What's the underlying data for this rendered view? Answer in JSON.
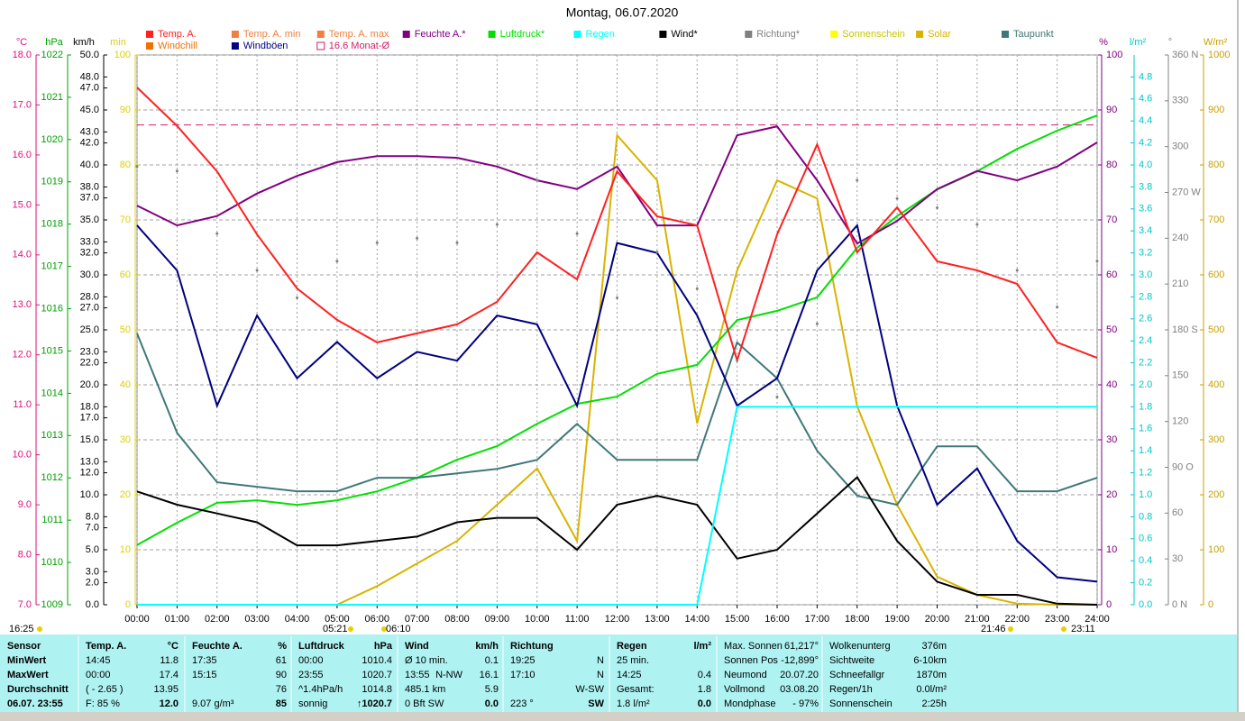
{
  "chart_data": {
    "type": "line",
    "title": "Montag, 06.07.2020",
    "x": [
      "00:00",
      "01:00",
      "02:00",
      "03:00",
      "04:00",
      "05:00",
      "06:00",
      "07:00",
      "08:00",
      "09:00",
      "10:00",
      "11:00",
      "12:00",
      "13:00",
      "14:00",
      "15:00",
      "16:00",
      "17:00",
      "18:00",
      "19:00",
      "20:00",
      "21:00",
      "22:00",
      "23:00",
      "24:00"
    ],
    "grid": true,
    "y_axes": [
      {
        "label": "°C",
        "color": "#e0107a",
        "lim": [
          7,
          18
        ],
        "ticks": [
          {
            "value": 7,
            "label": "7.0"
          },
          {
            "value": 8,
            "label": "8.0"
          },
          {
            "value": 9,
            "label": "9.0"
          },
          {
            "value": 10,
            "label": "10.0"
          },
          {
            "value": 11,
            "label": "11.0"
          },
          {
            "value": 12,
            "label": "12.0"
          },
          {
            "value": 13,
            "label": "13.0"
          },
          {
            "value": 14,
            "label": "14.0"
          },
          {
            "value": 15,
            "label": "15.0"
          },
          {
            "value": 16,
            "label": "16.0"
          },
          {
            "value": 17,
            "label": "17.0"
          },
          {
            "value": 18,
            "label": "18.0"
          }
        ]
      },
      {
        "label": "hPa",
        "color": "#00a000",
        "lim": [
          1009,
          1022
        ],
        "ticks": [
          1009,
          1010,
          1011,
          1012,
          1013,
          1014,
          1015,
          1016,
          1017,
          1018,
          1019,
          1020,
          1021,
          1022
        ]
      },
      {
        "label": "km/h",
        "color": "#000000",
        "lim": [
          0,
          50
        ],
        "ticks": [
          {
            "value": 0,
            "label": "0.0"
          },
          {
            "value": 2,
            "label": "2.0"
          },
          {
            "value": 3,
            "label": "3.0"
          },
          {
            "value": 5,
            "label": "5.0"
          },
          {
            "value": 7,
            "label": "7.0"
          },
          {
            "value": 8,
            "label": "8.0"
          },
          {
            "value": 10,
            "label": "10.0"
          },
          {
            "value": 12,
            "label": "12.0"
          },
          {
            "value": 13,
            "label": "13.0"
          },
          {
            "value": 15,
            "label": "15.0"
          },
          {
            "value": 17,
            "label": "17.0"
          },
          {
            "value": 18,
            "label": "18.0"
          },
          {
            "value": 20,
            "label": "20.0"
          },
          {
            "value": 22,
            "label": "22.0"
          },
          {
            "value": 23,
            "label": "23.0"
          },
          {
            "value": 25,
            "label": "25.0"
          },
          {
            "value": 27,
            "label": "27.0"
          },
          {
            "value": 28,
            "label": "28.0"
          },
          {
            "value": 30,
            "label": "30.0"
          },
          {
            "value": 32,
            "label": "32.0"
          },
          {
            "value": 33,
            "label": "33.0"
          },
          {
            "value": 35,
            "label": "35.0"
          },
          {
            "value": 37,
            "label": "37.0"
          },
          {
            "value": 38,
            "label": "38.0"
          },
          {
            "value": 40,
            "label": "40.0"
          },
          {
            "value": 42,
            "label": "42.0"
          },
          {
            "value": 43,
            "label": "43.0"
          },
          {
            "value": 45,
            "label": "45.0"
          },
          {
            "value": 47,
            "label": "47.0"
          },
          {
            "value": 48,
            "label": "48.0"
          },
          {
            "value": 50,
            "label": "50.0"
          }
        ]
      },
      {
        "label": "min",
        "color": "#e0d000",
        "lim": [
          0,
          100
        ],
        "ticks": [
          0,
          10,
          20,
          30,
          40,
          50,
          60,
          70,
          80,
          90,
          100
        ]
      },
      {
        "label": "%",
        "color": "#800080",
        "lim": [
          0,
          100
        ],
        "ticks": [
          0,
          10,
          20,
          30,
          40,
          50,
          60,
          70,
          80,
          90,
          100
        ]
      },
      {
        "label": "l/m²",
        "color": "#00c8c8",
        "lim": [
          0,
          5
        ],
        "ticks": [
          {
            "value": 0,
            "label": "0.0"
          },
          {
            "value": 0.2,
            "label": "0.2"
          },
          {
            "value": 0.4,
            "label": "0.4"
          },
          {
            "value": 0.6,
            "label": "0.6"
          },
          {
            "value": 0.8,
            "label": "0.8"
          },
          {
            "value": 1,
            "label": "1.0"
          },
          {
            "value": 1.2,
            "label": "1.2"
          },
          {
            "value": 1.4,
            "label": "1.4"
          },
          {
            "value": 1.6,
            "label": "1.6"
          },
          {
            "value": 1.8,
            "label": "1.8"
          },
          {
            "value": 2,
            "label": "2.0"
          },
          {
            "value": 2.2,
            "label": "2.2"
          },
          {
            "value": 2.4,
            "label": "2.4"
          },
          {
            "value": 2.6,
            "label": "2.6"
          },
          {
            "value": 2.8,
            "label": "2.8"
          },
          {
            "value": 3,
            "label": "3.0"
          },
          {
            "value": 3.2,
            "label": "3.2"
          },
          {
            "value": 3.4,
            "label": "3.4"
          },
          {
            "value": 3.6,
            "label": "3.6"
          },
          {
            "value": 3.8,
            "label": "3.8"
          },
          {
            "value": 4,
            "label": "4.0"
          },
          {
            "value": 4.2,
            "label": "4.2"
          },
          {
            "value": 4.4,
            "label": "4.4"
          },
          {
            "value": 4.6,
            "label": "4.6"
          },
          {
            "value": 4.8,
            "label": "4.8"
          }
        ]
      },
      {
        "label": "°",
        "color": "#808080",
        "lim": [
          0,
          360
        ],
        "ticks": [
          {
            "value": 0,
            "label": "0 N"
          },
          30,
          60,
          {
            "value": 90,
            "label": "90 O"
          },
          120,
          150,
          {
            "value": 180,
            "label": "180 S"
          },
          210,
          240,
          {
            "value": 270,
            "label": "270 W"
          },
          300,
          330,
          {
            "value": 360,
            "label": "360 N"
          }
        ]
      },
      {
        "label": "W/m²",
        "color": "#c8a000",
        "lim": [
          0,
          1000
        ],
        "ticks": [
          0,
          100,
          200,
          300,
          400,
          500,
          600,
          700,
          800,
          900,
          1000
        ]
      }
    ],
    "series": [
      {
        "name": "Temp. A.",
        "color": "#ff2020",
        "axis": 0,
        "style": "line",
        "values": [
          17.35,
          16.58,
          15.67,
          14.41,
          13.33,
          12.7,
          12.25,
          12.43,
          12.61,
          13.06,
          14.05,
          13.51,
          15.67,
          14.77,
          14.59,
          11.89,
          14.41,
          16.21,
          14.05,
          14.95,
          13.87,
          13.69,
          13.42,
          12.25,
          11.94
        ]
      },
      {
        "name": "Temp. A. min",
        "color": "#f08040"
      },
      {
        "name": "Temp. A. max",
        "color": "#f08040"
      },
      {
        "name": "Feuchte A.*",
        "color": "#800080",
        "axis": 4,
        "style": "line",
        "values": [
          72.6,
          69,
          70.7,
          74.8,
          78,
          80.5,
          81.6,
          81.6,
          81.3,
          79.7,
          77.2,
          75.6,
          79.7,
          69,
          69,
          85.4,
          87,
          77.2,
          65.7,
          69.8,
          75.6,
          78.9,
          77.2,
          79.7,
          84.1
        ]
      },
      {
        "name": "Luftdruck*",
        "color": "#00e000",
        "axis": 1,
        "style": "line",
        "values": [
          1010.41,
          1010.94,
          1011.41,
          1011.47,
          1011.36,
          1011.47,
          1011.68,
          1012.0,
          1012.43,
          1012.75,
          1013.28,
          1013.75,
          1013.92,
          1014.46,
          1014.67,
          1015.73,
          1015.95,
          1016.27,
          1017.44,
          1018.19,
          1018.82,
          1019.25,
          1019.78,
          1020.21,
          1020.57
        ]
      },
      {
        "name": "Regen",
        "color": "#00ffff",
        "axis": 5,
        "style": "line",
        "values": [
          0,
          0,
          0,
          0,
          0,
          0,
          0,
          0,
          0,
          0,
          0,
          0,
          0,
          0,
          0,
          1.8,
          1.8,
          1.8,
          1.8,
          1.8,
          1.8,
          1.8,
          1.8,
          1.8,
          1.8
        ]
      },
      {
        "name": "Wind*",
        "color": "#000000",
        "axis": 2,
        "style": "line",
        "values": [
          10.3,
          9.1,
          8.3,
          7.5,
          5.4,
          5.4,
          5.8,
          6.2,
          7.5,
          7.9,
          7.9,
          5.0,
          9.1,
          9.9,
          9.1,
          4.2,
          5.0,
          8.3,
          11.6,
          5.8,
          2.1,
          0.9,
          0.9,
          0.1,
          0
        ]
      },
      {
        "name": "Richtung*",
        "color": "#808080",
        "axis": 6,
        "style": "dots",
        "values": [
          287,
          284,
          243,
          219,
          201,
          225,
          237,
          240,
          237,
          249,
          278,
          243,
          201,
          231,
          207,
          160,
          136,
          184,
          278,
          266,
          260,
          249,
          219,
          195,
          225
        ]
      },
      {
        "name": "Sonnenschein",
        "color": "#ffff00"
      },
      {
        "name": "Solar",
        "color": "#d8b400",
        "axis": 7,
        "style": "line",
        "values": [
          0,
          0,
          0,
          0,
          0,
          0,
          34,
          75,
          116,
          182,
          248,
          116,
          854,
          772,
          330,
          608,
          772,
          739,
          361,
          182,
          51,
          18,
          2,
          0,
          0
        ]
      },
      {
        "name": "Taupunkt",
        "color": "#407878",
        "axis": 0,
        "style": "line",
        "values": [
          12.43,
          10.44,
          9.45,
          9.36,
          9.27,
          9.27,
          9.54,
          9.54,
          9.63,
          9.72,
          9.9,
          10.62,
          9.9,
          9.9,
          9.9,
          12.25,
          11.53,
          10.08,
          9.18,
          9.0,
          10.17,
          10.17,
          9.27,
          9.27,
          9.54
        ]
      },
      {
        "name": "Windchill",
        "color": "#f07000"
      },
      {
        "name": "Windböen",
        "color": "#000080",
        "axis": 2,
        "style": "line",
        "values": [
          34.5,
          30.4,
          18.1,
          26.3,
          20.6,
          23.9,
          20.6,
          23.0,
          22.2,
          26.3,
          25.5,
          18.1,
          32.9,
          32.0,
          26.3,
          18.1,
          20.6,
          30.4,
          34.5,
          18.1,
          9.1,
          12.4,
          5.8,
          2.5,
          2.1
        ]
      },
      {
        "name": "Monat-Ø",
        "color": "#d0206a",
        "axis": 0,
        "style": "dashed",
        "value": 16.6
      }
    ],
    "annotations": [
      "16:25",
      "05:21",
      "06:10",
      "21:46",
      "23:11"
    ]
  },
  "stats": {
    "columns": [
      {
        "header": [
          "Sensor"
        ],
        "rows": [
          [
            "MinWert"
          ],
          [
            "MaxWert"
          ],
          [
            "Durchschnitt"
          ],
          [
            "06.07. 23:55"
          ]
        ]
      },
      {
        "header": [
          "Temp. A.",
          "°C"
        ],
        "rows": [
          [
            "14:45",
            "11.8"
          ],
          [
            "00:00",
            "17.4"
          ],
          [
            "( - 2.65 )",
            "13.95"
          ],
          [
            "F: 85 %",
            "12.0"
          ]
        ]
      },
      {
        "header": [
          "Feuchte A.",
          "%"
        ],
        "rows": [
          [
            "17:35",
            "61"
          ],
          [
            "15:15",
            "90"
          ],
          [
            null,
            "76"
          ],
          [
            "9.07 g/m³",
            "85"
          ]
        ]
      },
      {
        "header": [
          "Luftdruck",
          "hPa"
        ],
        "rows": [
          [
            "00:00",
            "1010.4"
          ],
          [
            "23:55",
            "1020.7"
          ],
          [
            "^1.4hPa/h",
            "1014.8"
          ],
          [
            "sonnig",
            "↑1020.7"
          ]
        ]
      },
      {
        "header": [
          "Wind",
          "km/h"
        ],
        "rows": [
          [
            "Ø 10 min.",
            "0.1"
          ],
          [
            "13:55",
            "N-NW",
            "16.1"
          ],
          [
            "485.1 km",
            "5.9"
          ],
          [
            "0 Bft SW",
            "0.0"
          ]
        ]
      },
      {
        "header": [
          "Richtung"
        ],
        "rows": [
          [
            "19:25",
            "N"
          ],
          [
            "17:10",
            "N"
          ],
          [
            null,
            "W-SW"
          ],
          [
            "223 °",
            "SW"
          ]
        ]
      },
      {
        "header": [
          "Regen",
          "l/m²"
        ],
        "rows": [
          [
            "25 min."
          ],
          [
            "14:25",
            "0.4"
          ],
          [
            "Gesamt:",
            "1.8"
          ],
          [
            "1.8 l/m²",
            "0.0"
          ]
        ]
      },
      {
        "rows": [
          [
            "Max. Sonnen",
            "61,217°"
          ],
          [
            "Sonnen Pos",
            "-12,899°"
          ],
          [
            "Neumond",
            "20.07.20"
          ],
          [
            "Vollmond",
            "03.08.20"
          ],
          [
            "Mondphase",
            "- 97%"
          ]
        ]
      },
      {
        "rows": [
          [
            "Wolkenunterg",
            "376m"
          ],
          [
            "Sichtweite",
            "6-10km"
          ],
          [
            "Schneefallgr",
            "1870m"
          ],
          [
            "Regen/1h",
            "0.0l/m²"
          ],
          [
            "Sonnenschein",
            "2:25h"
          ]
        ]
      }
    ]
  }
}
